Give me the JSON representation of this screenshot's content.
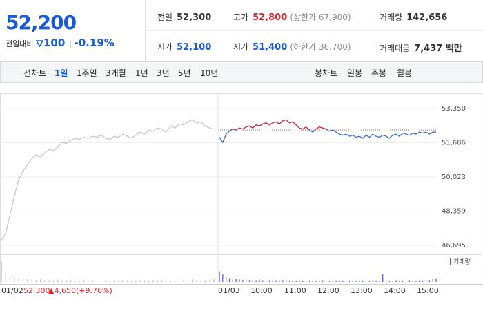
{
  "header": {
    "price": "52,200",
    "change_label": "전일대비",
    "change": "100",
    "change_pct": "-0.19%"
  },
  "stats": [
    {
      "label": "전일",
      "value": "52,300"
    },
    {
      "label": "고가",
      "value": "52,800",
      "note": "(상한가 67,900)"
    },
    {
      "label": "거래량",
      "value": "142,656"
    },
    {
      "label": "시가",
      "value": "52,100"
    },
    {
      "label": "저가",
      "value": "51,400",
      "note": "(하한가 36,700)"
    },
    {
      "label": "거래대금",
      "value": "7,437 백만"
    }
  ],
  "tabs": {
    "line_label": "선차트",
    "line": [
      "1일",
      "1주일",
      "3개월",
      "1년",
      "3년",
      "5년",
      "10년"
    ],
    "candle_label": "봉차트",
    "candle": [
      "일봉",
      "주봉",
      "월봉"
    ]
  },
  "chart_data": {
    "type": "line",
    "ylim": [
      46360,
      53750
    ],
    "yticks": [
      {
        "value": 53350,
        "label": "53,350"
      },
      {
        "value": 51686,
        "label": "51,686"
      },
      {
        "value": 50023,
        "label": "50,023"
      },
      {
        "value": 48359,
        "label": "48,359"
      },
      {
        "value": 46695,
        "label": "46,695"
      }
    ],
    "reference_line": 52300,
    "up_color": "#e0262c",
    "x_labels": [
      "01/02",
      "01/03",
      "10:00",
      "11:00",
      "12:00",
      "13:00",
      "14:00",
      "15:00"
    ],
    "volume_legend": "거래량",
    "volume_ylim": [
      0,
      70
    ],
    "series": [
      {
        "color": "#c4c4c4",
        "volume_color": "#b8b8c8",
        "values": [
          46950,
          47300,
          48200,
          49100,
          49900,
          50300,
          50600,
          50900,
          51100,
          51000,
          51200,
          51350,
          51300,
          51500,
          51700,
          51650,
          51800,
          51900,
          51850,
          51950,
          51900,
          52000,
          51950,
          52050,
          51900,
          51850,
          52000,
          51950,
          52100,
          52000,
          51900,
          52050,
          52200,
          52100,
          52300,
          52250,
          52400,
          52350,
          52200,
          52500,
          52400,
          52600,
          52550,
          52700,
          52800,
          52650,
          52700,
          52500,
          52400,
          52350
        ],
        "volume": [
          60,
          25,
          15,
          12,
          10,
          8,
          9,
          7,
          6,
          8,
          5,
          6,
          5,
          7,
          5,
          4,
          6,
          5,
          4,
          5,
          4,
          5,
          4,
          4,
          5,
          4,
          3,
          4,
          5,
          4,
          3,
          4,
          5,
          4,
          3,
          6,
          4,
          5,
          4,
          3,
          5,
          4,
          6,
          5,
          7,
          4,
          5,
          4,
          5,
          9
        ]
      },
      {
        "color": "#2a64cf",
        "volume_color": "#4a5ad0",
        "values": [
          51950,
          51700,
          52100,
          52250,
          52350,
          52300,
          52400,
          52350,
          52450,
          52500,
          52400,
          52550,
          52500,
          52600,
          52650,
          52550,
          52650,
          52700,
          52600,
          52750,
          52800,
          52650,
          52700,
          52550,
          52400,
          52350,
          52450,
          52300,
          52200,
          52350,
          52450,
          52400,
          52350,
          52250,
          52300,
          52200,
          52100,
          52050,
          52100,
          52000,
          52050,
          51950,
          52000,
          51900,
          52050,
          51950,
          52100,
          52000,
          51950,
          52050,
          52000,
          51900,
          52050,
          52100,
          52000,
          52150,
          52100,
          52050,
          52150,
          52100,
          52200,
          52150,
          52200,
          52100,
          52200,
          52200
        ],
        "volume": [
          30,
          22,
          14,
          10,
          8,
          9,
          7,
          6,
          7,
          5,
          6,
          5,
          7,
          5,
          4,
          5,
          6,
          5,
          4,
          5,
          6,
          4,
          5,
          4,
          5,
          4,
          3,
          4,
          5,
          4,
          4,
          5,
          4,
          3,
          4,
          4,
          5,
          4,
          3,
          4,
          3,
          4,
          5,
          4,
          3,
          4,
          5,
          4,
          3,
          22,
          4,
          3,
          4,
          5,
          4,
          3,
          4,
          5,
          4,
          3,
          5,
          4,
          6,
          5,
          8,
          10
        ]
      }
    ],
    "footer": {
      "date": "01/02",
      "close": "52,300",
      "change": "▲4,650",
      "pct": "(+9.76%)"
    }
  }
}
